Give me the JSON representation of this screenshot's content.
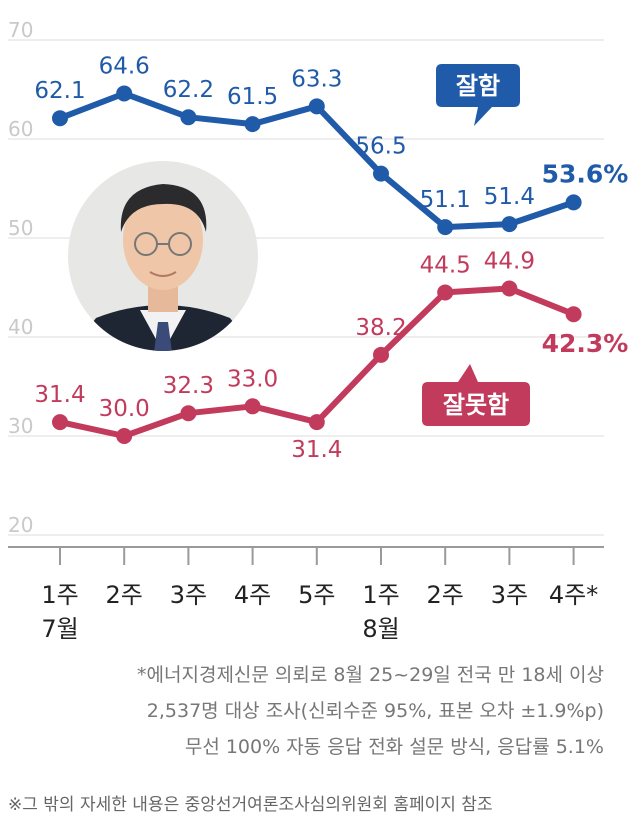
{
  "chart_data": {
    "type": "line",
    "categories": [
      "1주",
      "2주",
      "3주",
      "4주",
      "5주",
      "1주",
      "2주",
      "3주",
      "4주*"
    ],
    "month_labels": [
      {
        "index": 0,
        "text": "7월"
      },
      {
        "index": 5,
        "text": "8월"
      }
    ],
    "series": [
      {
        "name": "잘함",
        "color": "#1f5ba8",
        "values": [
          62.1,
          64.6,
          62.2,
          61.5,
          63.3,
          56.5,
          51.1,
          51.4,
          53.6
        ],
        "labels": [
          "62.1",
          "64.6",
          "62.2",
          "61.5",
          "63.3",
          "56.5",
          "51.1",
          "51.4",
          "53.6%"
        ]
      },
      {
        "name": "잘못함",
        "color": "#c23a5c",
        "values": [
          31.4,
          30.0,
          32.3,
          33.0,
          31.4,
          38.2,
          44.5,
          44.9,
          42.3
        ],
        "labels": [
          "31.4",
          "30.0",
          "32.3",
          "33.0",
          "31.4",
          "38.2",
          "44.5",
          "44.9",
          "42.3%"
        ]
      }
    ],
    "y_ticks": [
      70,
      60,
      50,
      40,
      30,
      20
    ],
    "ylim": [
      20,
      70
    ],
    "grid": true,
    "legend": "inline callouts"
  },
  "notes": [
    "*에너지경제신문 의뢰로 8월 25~29일 전국 만 18세 이상",
    "2,537명 대상 조사(신뢰수준 95%, 표본 오차 ±1.9%p)",
    "무선 100% 자동 응답 전화 설문 방식, 응답률 5.1%"
  ],
  "source": "※그 밖의 자세한 내용은 중앙선거여론조사심의위원회 홈페이지 참조"
}
